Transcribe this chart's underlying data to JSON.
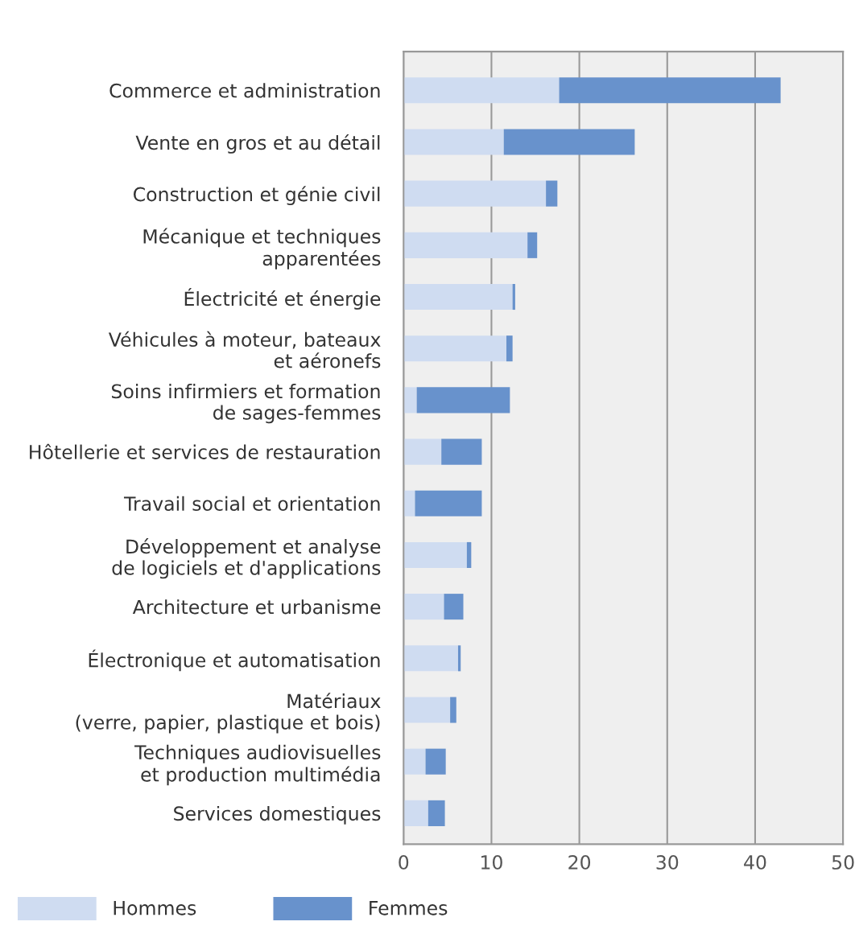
{
  "chart_data": {
    "type": "bar",
    "orientation": "horizontal",
    "stacked": true,
    "categories": [
      "Commerce et administration",
      "Vente en gros et au détail",
      "Construction et génie civil",
      "Mécanique et techniques\napparentées",
      "Électricité et énergie",
      "Véhicules à moteur, bateaux\net aéronefs",
      "Soins infirmiers et formation\nde sages-femmes",
      "Hôtellerie et services de restauration",
      "Travail social et orientation",
      "Développement et analyse\nde logiciels et d'applications",
      "Architecture et urbanisme",
      "Électronique et automatisation",
      "Matériaux\n(verre, papier, plastique et bois)",
      "Techniques audiovisuelles\net production multimédia",
      "Services domestiques"
    ],
    "series": [
      {
        "name": "Hommes",
        "color": "#cfdcf1",
        "values": [
          17.7,
          11.4,
          16.2,
          14.1,
          12.4,
          11.7,
          1.5,
          4.3,
          1.3,
          7.2,
          4.6,
          6.2,
          5.3,
          2.5,
          2.8
        ]
      },
      {
        "name": "Femmes",
        "color": "#6892cc",
        "values": [
          25.2,
          14.9,
          1.3,
          1.1,
          0.3,
          0.7,
          10.6,
          4.6,
          7.6,
          0.5,
          2.2,
          0.3,
          0.7,
          2.3,
          1.9
        ]
      }
    ],
    "xlim": [
      0,
      50
    ],
    "xticks": [
      0,
      10,
      20,
      30,
      40,
      50
    ],
    "grid": "x",
    "legend": "bottom left"
  }
}
